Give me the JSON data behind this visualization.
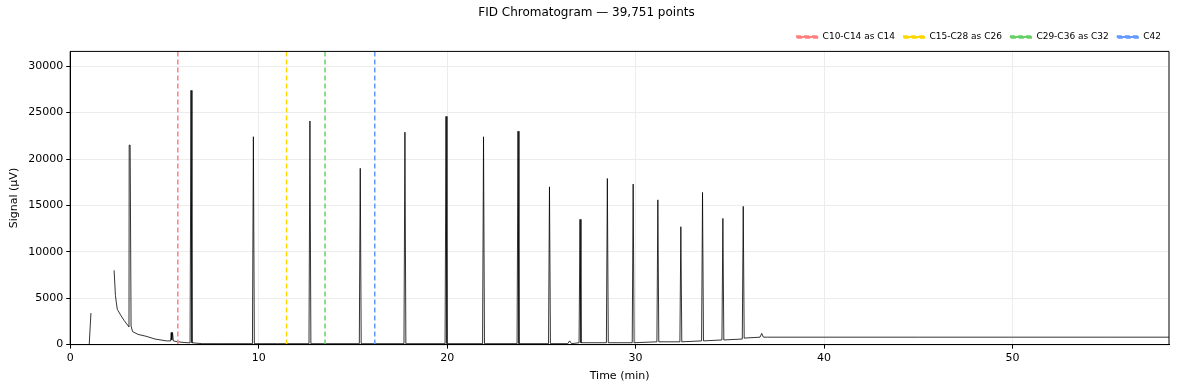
{
  "chart_data": {
    "type": "line",
    "title": "FID Chromatogram — 39,751 points",
    "xlabel": "Time (min)",
    "ylabel": "Signal (µV)",
    "xlim": [
      0,
      58.3
    ],
    "ylim": [
      0,
      31600
    ],
    "xticks": [
      0,
      10,
      20,
      30,
      40,
      50
    ],
    "yticks": [
      0,
      5000,
      10000,
      15000,
      20000,
      25000,
      30000
    ],
    "grid": true,
    "legend": "top right",
    "marker": "none",
    "line_style": "solid",
    "series": [
      {
        "color": "#000000",
        "x": [
          0.95,
          1.01,
          1.1,
          1.17,
          2.26,
          2.33,
          2.4,
          2.45,
          2.5,
          2.7,
          2.86,
          3.12,
          3.13,
          3.18,
          3.23,
          3.31,
          3.6,
          4.02,
          4.5,
          5.1,
          5.33,
          5.36,
          5.39,
          5.43,
          5.47,
          5.5,
          5.7,
          6.2,
          6.36,
          6.41,
          6.46,
          7.0,
          8.0,
          9.67,
          9.72,
          9.77,
          11.0,
          12.67,
          12.72,
          12.77,
          15.34,
          15.39,
          15.44,
          17.71,
          17.76,
          17.81,
          19.89,
          19.94,
          19.99,
          21.88,
          21.93,
          21.98,
          23.71,
          23.76,
          23.81,
          25.38,
          25.43,
          25.48,
          26.4,
          26.5,
          26.6,
          27.0,
          27.05,
          27.1,
          28.45,
          28.5,
          28.55,
          29.82,
          29.87,
          29.92,
          31.13,
          31.18,
          31.23,
          32.35,
          32.4,
          32.45,
          33.5,
          33.55,
          33.6,
          34.58,
          34.63,
          34.68,
          35.66,
          35.71,
          35.76,
          36.6,
          36.69,
          36.78,
          37.0,
          40.0,
          45.0,
          50.0,
          55.0,
          58.3
        ],
        "values": [
          0,
          0,
          3400,
          null,
          null,
          8000,
          5300,
          4500,
          3800,
          3100,
          2600,
          1900,
          21500,
          21500,
          2000,
          1400,
          1100,
          900,
          600,
          400,
          400,
          1300,
          500,
          1300,
          400,
          400,
          300,
          200,
          200,
          27400,
          200,
          100,
          100,
          100,
          22400,
          100,
          100,
          100,
          24100,
          100,
          100,
          19000,
          100,
          100,
          22900,
          100,
          100,
          24600,
          100,
          100,
          22400,
          100,
          100,
          23000,
          100,
          100,
          17000,
          100,
          100,
          400,
          100,
          200,
          13500,
          200,
          200,
          17900,
          200,
          200,
          17300,
          200,
          300,
          15600,
          300,
          300,
          12700,
          300,
          400,
          16400,
          400,
          500,
          13600,
          500,
          600,
          14900,
          700,
          800,
          1200,
          800,
          800,
          800,
          800,
          800,
          800,
          800
        ]
      }
    ],
    "ref_lines": [
      {
        "axis": "x",
        "value": 5.71,
        "label": "C10-C14 as C14",
        "color": "#ff7f7f",
        "line_style": "dashed"
      },
      {
        "axis": "x",
        "value": 11.48,
        "label": "C15-C28 as C26",
        "color": "#ffd700",
        "line_style": "dashed"
      },
      {
        "axis": "x",
        "value": 13.52,
        "label": "C29-C36 as C32",
        "color": "#66d166",
        "line_style": "dashed"
      },
      {
        "axis": "x",
        "value": 16.16,
        "label": "C42",
        "color": "#6699ff",
        "line_style": "dashed"
      }
    ]
  }
}
